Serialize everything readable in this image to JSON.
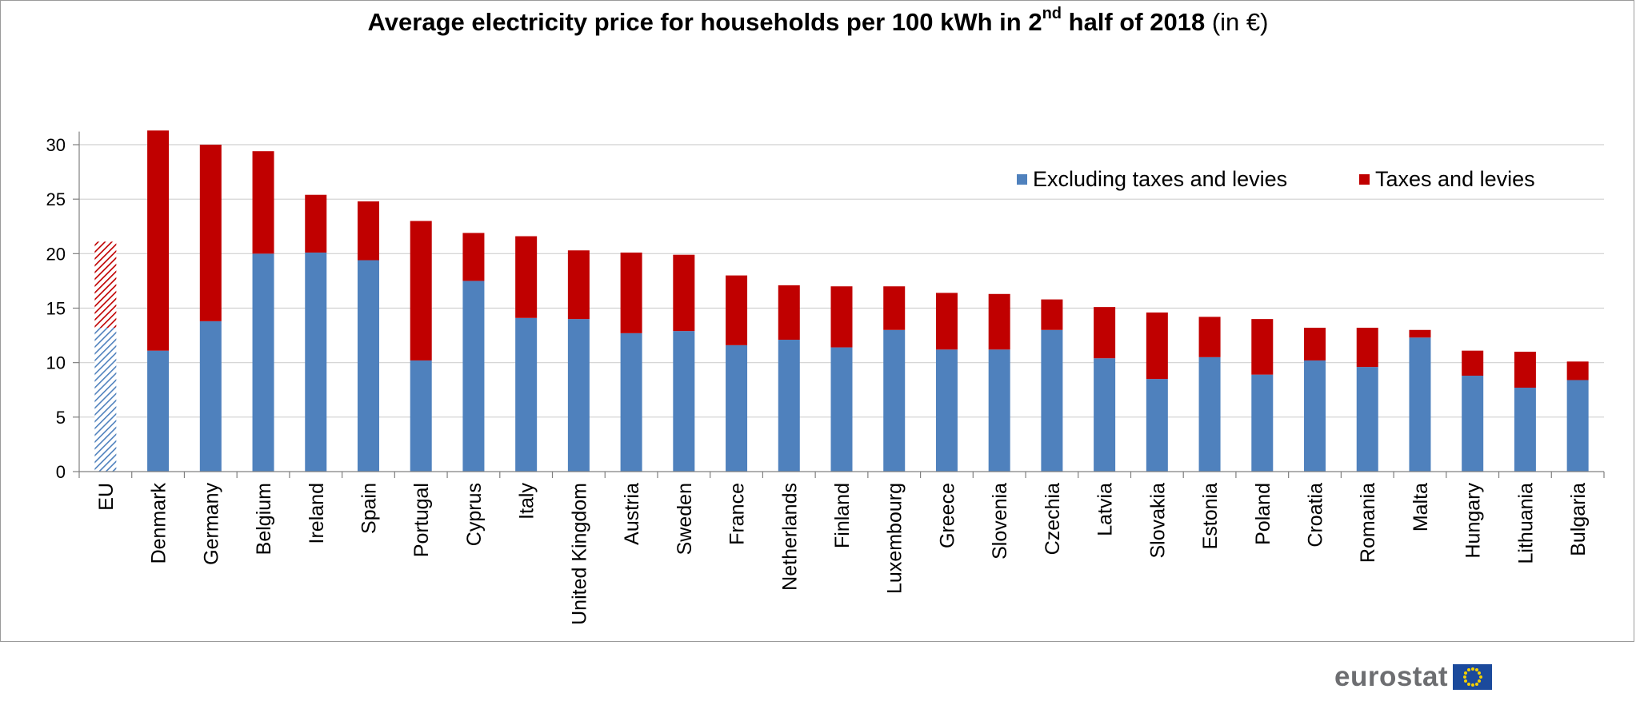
{
  "chart_data": {
    "type": "bar",
    "stacked": true,
    "title": {
      "main": "Average electricity price for households per 100 kWh in 2",
      "sup": "nd",
      "rest": " half of 2018",
      "unit": " (in €)"
    },
    "categories": [
      "EU",
      "Denmark",
      "Germany",
      "Belgium",
      "Ireland",
      "Spain",
      "Portugal",
      "Cyprus",
      "Italy",
      "United Kingdom",
      "Austria",
      "Sweden",
      "France",
      "Netherlands",
      "Finland",
      "Luxembourg",
      "Greece",
      "Slovenia",
      "Czechia",
      "Latvia",
      "Slovakia",
      "Estonia",
      "Poland",
      "Croatia",
      "Romania",
      "Malta",
      "Hungary",
      "Lithuania",
      "Bulgaria"
    ],
    "series": [
      {
        "name": "Excluding taxes and levies",
        "color": "#4f81bd",
        "values": [
          13.2,
          11.1,
          13.8,
          20.0,
          20.1,
          19.4,
          10.2,
          17.5,
          14.1,
          14.0,
          12.7,
          12.9,
          11.6,
          12.1,
          11.4,
          13.0,
          11.2,
          11.2,
          13.0,
          10.4,
          8.5,
          10.5,
          8.9,
          10.2,
          9.6,
          12.3,
          8.8,
          7.7,
          8.4
        ]
      },
      {
        "name": "Taxes and levies",
        "color": "#c00000",
        "values": [
          7.9,
          20.2,
          16.2,
          9.4,
          5.3,
          5.4,
          12.8,
          4.4,
          7.5,
          6.3,
          7.4,
          7.0,
          6.4,
          5.0,
          5.6,
          4.0,
          5.2,
          5.1,
          2.8,
          4.7,
          6.1,
          3.7,
          5.1,
          3.0,
          3.6,
          0.7,
          2.3,
          3.3,
          1.7
        ]
      }
    ],
    "highlight_category": "EU",
    "yticks": [
      0,
      5,
      10,
      15,
      20,
      25,
      30
    ],
    "ylim": [
      0,
      31.5
    ],
    "xlabel": "",
    "ylabel": "",
    "grid": true,
    "legend_position": "top-right"
  },
  "logo": {
    "text": "eurostat",
    "flag_icon": "eu-flag-icon"
  }
}
